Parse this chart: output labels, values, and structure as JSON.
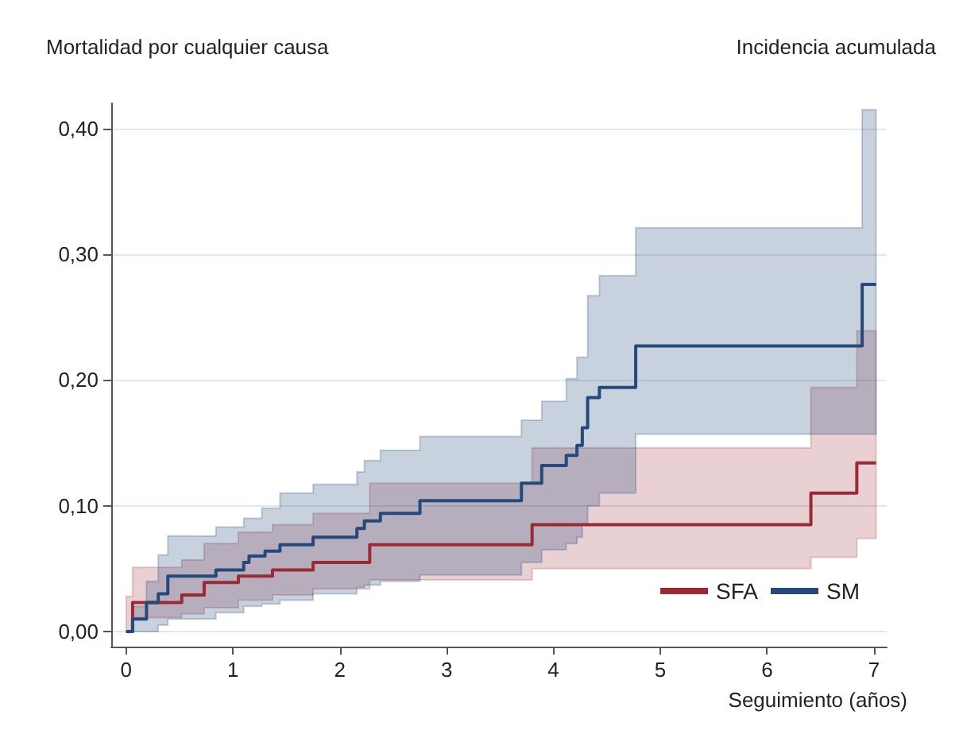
{
  "chart_data": {
    "type": "step",
    "title": "Mortalidad por cualquier causa",
    "ylabel": "Incidencia acumulada",
    "xlabel": "Seguimiento (años)",
    "xlim": [
      -0.14,
      7.12
    ],
    "xticks": [
      0,
      1,
      2,
      3,
      4,
      5,
      6,
      7
    ],
    "ylim": [
      -0.012,
      0.42
    ],
    "yticks": [
      {
        "value": 0,
        "label": "0,00"
      },
      {
        "value": 0.1,
        "label": "0,10"
      },
      {
        "value": 0.2,
        "label": "0,20"
      },
      {
        "value": 0.3,
        "label": "0,30"
      },
      {
        "value": 0.4,
        "label": "0,40"
      }
    ],
    "grid": "y",
    "legend": "bottom right",
    "marker": "none",
    "line_style": "solid",
    "series": [
      {
        "name": "SFA",
        "color": "#9b2a35",
        "x": [
          0,
          0.06,
          0.52,
          0.73,
          1.05,
          1.37,
          1.75,
          2.28,
          3.8,
          6.41,
          6.84,
          7.02
        ],
        "values": [
          0,
          0.023,
          0.029,
          0.039,
          0.044,
          0.049,
          0.055,
          0.069,
          0.085,
          0.11,
          0.134,
          0.134
        ],
        "lower": [
          0,
          0.011,
          0.014,
          0.019,
          0.025,
          0.029,
          0.034,
          0.041,
          0.05,
          0.059,
          0.074,
          0.074
        ],
        "upper": [
          0.028,
          0.051,
          0.057,
          0.07,
          0.079,
          0.085,
          0.094,
          0.118,
          0.146,
          0.194,
          0.239,
          0.239
        ]
      },
      {
        "name": "SM",
        "color": "#24497a",
        "x": [
          0,
          0.06,
          0.19,
          0.3,
          0.39,
          0.84,
          1.1,
          1.15,
          1.27,
          1.3,
          1.44,
          1.75,
          2.16,
          2.23,
          2.38,
          2.75,
          3.7,
          3.89,
          4.12,
          4.22,
          4.27,
          4.32,
          4.43,
          4.77,
          6.89,
          7.02
        ],
        "values": [
          0,
          0.01,
          0.023,
          0.03,
          0.044,
          0.049,
          0.055,
          0.06,
          0.06,
          0.064,
          0.069,
          0.075,
          0.082,
          0.088,
          0.094,
          0.104,
          0.118,
          0.132,
          0.14,
          0.148,
          0.162,
          0.186,
          0.194,
          0.227,
          0.276,
          0.276
        ],
        "lower": [
          0,
          0,
          0,
          0.005,
          0.01,
          0.015,
          0.02,
          0.02,
          0.022,
          0.022,
          0.025,
          0.03,
          0.035,
          0.037,
          0.04,
          0.045,
          0.055,
          0.065,
          0.07,
          0.075,
          0.085,
          0.1,
          0.11,
          0.157,
          0.157,
          0.157
        ],
        "upper": [
          0,
          0.02,
          0.04,
          0.061,
          0.076,
          0.083,
          0.09,
          0.09,
          0.098,
          0.098,
          0.11,
          0.117,
          0.127,
          0.136,
          0.144,
          0.155,
          0.168,
          0.183,
          0.201,
          0.218,
          0.218,
          0.267,
          0.283,
          0.321,
          0.415,
          0.415
        ]
      }
    ]
  }
}
